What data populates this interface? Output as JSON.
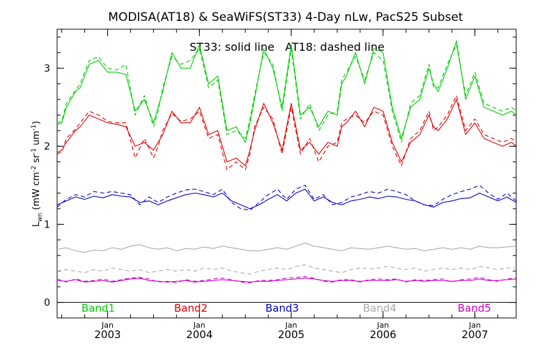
{
  "chart_data": {
    "type": "line",
    "title": "MODISA(AT18) & SeaWiFS(ST33) 4-Day nLw, PacS25 Subset",
    "annotation": "ST33: solid line   AT18: dashed line",
    "ylabel": {
      "main": "L",
      "sub": "wn",
      "units_open": " (mW cm",
      "units_sup1": "-2",
      "units_mid1": " sr",
      "units_sup2": "-1",
      "units_mid2": " um",
      "units_sup3": "-1",
      "units_close": ")"
    },
    "ylim": [
      -0.2,
      3.5
    ],
    "yticks": [
      {
        "value": 0,
        "label": "0"
      },
      {
        "value": 1,
        "label": "1"
      },
      {
        "value": 2,
        "label": "2"
      },
      {
        "value": 3,
        "label": "3"
      }
    ],
    "xlim": [
      2002.45,
      2007.45
    ],
    "xticks_major": [
      {
        "value": 2003,
        "month": "Jan",
        "year": "2003"
      },
      {
        "value": 2004,
        "month": "Jan",
        "year": "2004"
      },
      {
        "value": 2005,
        "month": "Jan",
        "year": "2005"
      },
      {
        "value": 2006,
        "month": "Jan",
        "year": "2006"
      },
      {
        "value": 2007,
        "month": "Jan",
        "year": "2007"
      }
    ],
    "line_styles": {
      "ST33": "solid",
      "AT18": "dashed"
    },
    "series": [
      {
        "name": "Band1",
        "color": "#00cc00",
        "x": [
          2002.45,
          2002.5,
          2002.55,
          2002.65,
          2002.7,
          2002.8,
          2002.9,
          2003.0,
          2003.1,
          2003.2,
          2003.3,
          2003.4,
          2003.5,
          2003.55,
          2003.6,
          2003.7,
          2003.8,
          2003.9,
          2004.0,
          2004.1,
          2004.2,
          2004.3,
          2004.4,
          2004.5,
          2004.55,
          2004.6,
          2004.7,
          2004.8,
          2004.9,
          2005.0,
          2005.1,
          2005.2,
          2005.3,
          2005.4,
          2005.5,
          2005.55,
          2005.6,
          2005.7,
          2005.8,
          2005.9,
          2006.0,
          2006.1,
          2006.2,
          2006.3,
          2006.4,
          2006.5,
          2006.55,
          2006.6,
          2006.7,
          2006.8,
          2006.9,
          2007.0,
          2007.1,
          2007.2,
          2007.3,
          2007.4,
          2007.45
        ],
        "ST33": [
          2.28,
          2.3,
          2.5,
          2.7,
          2.75,
          3.05,
          3.1,
          2.95,
          2.95,
          2.92,
          2.45,
          2.6,
          2.3,
          2.5,
          2.7,
          3.2,
          3.0,
          3.0,
          3.3,
          2.8,
          2.9,
          2.2,
          2.25,
          2.05,
          2.3,
          2.6,
          3.25,
          3.0,
          2.5,
          3.3,
          2.4,
          2.5,
          2.25,
          2.45,
          2.4,
          2.8,
          2.9,
          3.2,
          2.8,
          3.25,
          3.2,
          2.5,
          2.1,
          2.5,
          2.6,
          3.0,
          2.8,
          2.7,
          3.0,
          3.35,
          2.6,
          2.9,
          2.5,
          2.45,
          2.4,
          2.45,
          2.4
        ],
        "AT18": [
          2.3,
          2.32,
          2.55,
          2.72,
          2.8,
          3.1,
          3.15,
          3.0,
          2.98,
          3.05,
          2.4,
          2.65,
          2.25,
          2.45,
          2.75,
          3.15,
          3.05,
          3.1,
          3.25,
          2.75,
          2.85,
          2.15,
          2.2,
          2.1,
          2.35,
          2.65,
          3.2,
          3.05,
          2.45,
          3.25,
          2.35,
          2.55,
          2.2,
          2.4,
          2.45,
          2.85,
          2.95,
          3.15,
          2.85,
          3.2,
          3.1,
          2.45,
          2.05,
          2.55,
          2.65,
          3.05,
          2.75,
          2.75,
          3.05,
          3.3,
          2.65,
          2.95,
          2.55,
          2.5,
          2.45,
          2.5,
          2.45
        ]
      },
      {
        "name": "Band2",
        "color": "#dd0000",
        "x": [
          2002.45,
          2002.5,
          2002.55,
          2002.65,
          2002.7,
          2002.8,
          2002.9,
          2003.0,
          2003.1,
          2003.2,
          2003.3,
          2003.4,
          2003.5,
          2003.55,
          2003.6,
          2003.7,
          2003.8,
          2003.9,
          2004.0,
          2004.1,
          2004.2,
          2004.3,
          2004.4,
          2004.5,
          2004.55,
          2004.6,
          2004.7,
          2004.8,
          2004.9,
          2005.0,
          2005.1,
          2005.2,
          2005.3,
          2005.4,
          2005.5,
          2005.55,
          2005.6,
          2005.7,
          2005.8,
          2005.9,
          2006.0,
          2006.1,
          2006.2,
          2006.3,
          2006.4,
          2006.5,
          2006.55,
          2006.6,
          2006.7,
          2006.8,
          2006.9,
          2007.0,
          2007.1,
          2007.2,
          2007.3,
          2007.4,
          2007.45
        ],
        "ST33": [
          1.92,
          1.95,
          2.05,
          2.2,
          2.25,
          2.4,
          2.35,
          2.3,
          2.28,
          2.25,
          2.0,
          2.05,
          1.95,
          2.05,
          2.15,
          2.45,
          2.3,
          2.3,
          2.5,
          2.15,
          2.2,
          1.8,
          1.85,
          1.75,
          1.95,
          2.2,
          2.55,
          2.3,
          1.95,
          2.55,
          1.95,
          2.05,
          1.9,
          2.05,
          2.0,
          2.25,
          2.3,
          2.45,
          2.25,
          2.5,
          2.45,
          2.05,
          1.8,
          2.05,
          2.15,
          2.4,
          2.25,
          2.2,
          2.35,
          2.6,
          2.15,
          2.3,
          2.1,
          2.05,
          2.0,
          2.05,
          2.0
        ],
        "AT18": [
          1.9,
          1.93,
          2.1,
          2.22,
          2.3,
          2.45,
          2.4,
          2.32,
          2.3,
          2.3,
          1.85,
          2.1,
          1.85,
          2.0,
          2.2,
          2.42,
          2.32,
          2.35,
          2.45,
          2.1,
          2.15,
          1.7,
          1.8,
          1.7,
          1.9,
          2.25,
          2.5,
          2.35,
          1.9,
          2.5,
          1.9,
          2.1,
          1.8,
          2.0,
          2.05,
          2.3,
          2.35,
          2.4,
          2.3,
          2.45,
          2.4,
          2.0,
          1.75,
          2.1,
          2.2,
          2.45,
          2.2,
          2.25,
          2.4,
          2.65,
          2.2,
          2.35,
          2.15,
          2.1,
          2.05,
          2.1,
          2.05
        ]
      },
      {
        "name": "Band3",
        "color": "#0000cc",
        "x": [
          2002.45,
          2002.55,
          2002.65,
          2002.75,
          2002.85,
          2002.95,
          2003.05,
          2003.15,
          2003.25,
          2003.35,
          2003.45,
          2003.55,
          2003.65,
          2003.75,
          2003.85,
          2003.95,
          2004.05,
          2004.15,
          2004.25,
          2004.35,
          2004.45,
          2004.55,
          2004.65,
          2004.75,
          2004.85,
          2004.95,
          2005.05,
          2005.15,
          2005.25,
          2005.35,
          2005.45,
          2005.55,
          2005.65,
          2005.75,
          2005.85,
          2005.95,
          2006.05,
          2006.15,
          2006.25,
          2006.35,
          2006.45,
          2006.55,
          2006.65,
          2006.75,
          2006.85,
          2006.95,
          2007.05,
          2007.15,
          2007.25,
          2007.35,
          2007.45
        ],
        "ST33": [
          1.25,
          1.3,
          1.35,
          1.32,
          1.36,
          1.34,
          1.38,
          1.36,
          1.35,
          1.28,
          1.3,
          1.25,
          1.3,
          1.34,
          1.38,
          1.4,
          1.38,
          1.35,
          1.4,
          1.3,
          1.25,
          1.2,
          1.25,
          1.32,
          1.38,
          1.3,
          1.4,
          1.45,
          1.3,
          1.35,
          1.28,
          1.25,
          1.3,
          1.32,
          1.35,
          1.33,
          1.36,
          1.35,
          1.32,
          1.3,
          1.25,
          1.22,
          1.28,
          1.3,
          1.33,
          1.34,
          1.4,
          1.35,
          1.3,
          1.35,
          1.28
        ],
        "AT18": [
          1.22,
          1.32,
          1.38,
          1.35,
          1.42,
          1.4,
          1.42,
          1.4,
          1.38,
          1.25,
          1.35,
          1.28,
          1.35,
          1.4,
          1.44,
          1.45,
          1.42,
          1.38,
          1.45,
          1.28,
          1.2,
          1.18,
          1.28,
          1.38,
          1.45,
          1.32,
          1.45,
          1.5,
          1.32,
          1.38,
          1.25,
          1.28,
          1.35,
          1.38,
          1.42,
          1.4,
          1.45,
          1.42,
          1.38,
          1.3,
          1.25,
          1.24,
          1.32,
          1.38,
          1.42,
          1.45,
          1.5,
          1.4,
          1.32,
          1.4,
          1.3
        ]
      },
      {
        "name": "Band4",
        "color": "#aaaaaa",
        "x": [
          2002.45,
          2002.55,
          2002.65,
          2002.75,
          2002.85,
          2002.95,
          2003.05,
          2003.15,
          2003.25,
          2003.35,
          2003.45,
          2003.55,
          2003.65,
          2003.75,
          2003.85,
          2003.95,
          2004.05,
          2004.15,
          2004.25,
          2004.35,
          2004.45,
          2004.55,
          2004.65,
          2004.75,
          2004.85,
          2004.95,
          2005.05,
          2005.15,
          2005.25,
          2005.35,
          2005.45,
          2005.55,
          2005.65,
          2005.75,
          2005.85,
          2005.95,
          2006.05,
          2006.15,
          2006.25,
          2006.35,
          2006.45,
          2006.55,
          2006.65,
          2006.75,
          2006.85,
          2006.95,
          2007.05,
          2007.15,
          2007.25,
          2007.35,
          2007.45
        ],
        "ST33": [
          0.68,
          0.7,
          0.66,
          0.64,
          0.67,
          0.66,
          0.7,
          0.68,
          0.72,
          0.74,
          0.7,
          0.68,
          0.7,
          0.66,
          0.69,
          0.68,
          0.71,
          0.69,
          0.72,
          0.7,
          0.68,
          0.66,
          0.66,
          0.68,
          0.7,
          0.68,
          0.72,
          0.76,
          0.72,
          0.7,
          0.68,
          0.66,
          0.7,
          0.69,
          0.68,
          0.7,
          0.72,
          0.7,
          0.68,
          0.69,
          0.66,
          0.68,
          0.7,
          0.68,
          0.7,
          0.68,
          0.72,
          0.7,
          0.7,
          0.71,
          0.72
        ],
        "AT18": [
          0.4,
          0.42,
          0.4,
          0.38,
          0.42,
          0.4,
          0.44,
          0.42,
          0.4,
          0.42,
          0.38,
          0.4,
          0.42,
          0.4,
          0.42,
          0.4,
          0.44,
          0.42,
          0.44,
          0.4,
          0.38,
          0.36,
          0.4,
          0.42,
          0.44,
          0.42,
          0.46,
          0.48,
          0.44,
          0.42,
          0.4,
          0.38,
          0.42,
          0.44,
          0.43,
          0.44,
          0.46,
          0.44,
          0.42,
          0.44,
          0.4,
          0.42,
          0.44,
          0.42,
          0.44,
          0.42,
          0.46,
          0.44,
          0.42,
          0.44,
          0.44
        ]
      },
      {
        "name": "Band5",
        "color": "#cc00cc",
        "x": [
          2002.45,
          2002.55,
          2002.65,
          2002.75,
          2002.85,
          2002.95,
          2003.05,
          2003.15,
          2003.25,
          2003.35,
          2003.45,
          2003.55,
          2003.65,
          2003.75,
          2003.85,
          2003.95,
          2004.05,
          2004.15,
          2004.25,
          2004.35,
          2004.45,
          2004.55,
          2004.65,
          2004.75,
          2004.85,
          2004.95,
          2005.05,
          2005.15,
          2005.25,
          2005.35,
          2005.45,
          2005.55,
          2005.65,
          2005.75,
          2005.85,
          2005.95,
          2006.05,
          2006.15,
          2006.25,
          2006.35,
          2006.45,
          2006.55,
          2006.65,
          2006.75,
          2006.85,
          2006.95,
          2007.05,
          2007.15,
          2007.25,
          2007.35,
          2007.45
        ],
        "ST33": [
          0.28,
          0.27,
          0.29,
          0.26,
          0.27,
          0.28,
          0.26,
          0.28,
          0.3,
          0.31,
          0.28,
          0.27,
          0.26,
          0.27,
          0.28,
          0.26,
          0.27,
          0.28,
          0.29,
          0.28,
          0.27,
          0.26,
          0.27,
          0.27,
          0.28,
          0.29,
          0.3,
          0.31,
          0.3,
          0.28,
          0.27,
          0.28,
          0.28,
          0.27,
          0.28,
          0.28,
          0.28,
          0.29,
          0.27,
          0.28,
          0.27,
          0.28,
          0.28,
          0.27,
          0.28,
          0.28,
          0.3,
          0.28,
          0.28,
          0.29,
          0.3
        ],
        "AT18": [
          0.3,
          0.26,
          0.3,
          0.27,
          0.28,
          0.3,
          0.27,
          0.29,
          0.31,
          0.32,
          0.3,
          0.26,
          0.27,
          0.25,
          0.29,
          0.27,
          0.28,
          0.3,
          0.31,
          0.29,
          0.26,
          0.25,
          0.28,
          0.28,
          0.29,
          0.31,
          0.32,
          0.33,
          0.31,
          0.27,
          0.26,
          0.29,
          0.29,
          0.26,
          0.29,
          0.3,
          0.29,
          0.3,
          0.26,
          0.29,
          0.28,
          0.29,
          0.3,
          0.26,
          0.29,
          0.3,
          0.32,
          0.29,
          0.27,
          0.3,
          0.31
        ]
      }
    ]
  }
}
